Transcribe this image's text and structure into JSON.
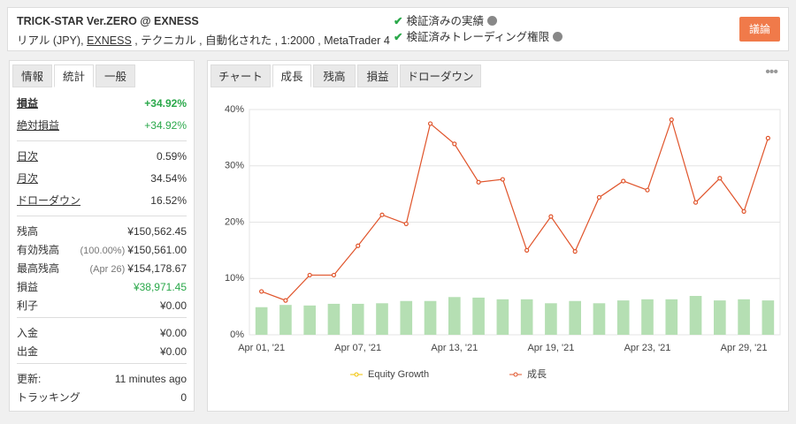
{
  "header": {
    "title": "TRICK-STAR Ver.ZERO @ EXNESS",
    "account": "リアル (JPY),",
    "broker": "EXNESS",
    "details": ", テクニカル , 自動化された , 1:2000 , MetaTrader 4",
    "badges": [
      "検証済みの実績",
      "検証済みトレーディング権限"
    ],
    "button": "議論"
  },
  "left_tabs": {
    "items": [
      "情報",
      "統計",
      "一般"
    ],
    "active": 1
  },
  "stats": [
    [
      {
        "label": "損益",
        "value": "+34.92%",
        "green": true,
        "bold": true
      },
      {
        "label": "絶対損益",
        "value": "+34.92%",
        "green": true
      }
    ],
    [
      {
        "label": "日次",
        "value": "0.59%"
      },
      {
        "label": "月次",
        "value": "34.54%"
      },
      {
        "label": "ドローダウン",
        "value": "16.52%"
      }
    ],
    [
      {
        "label": "残高",
        "value": "¥150,562.45"
      },
      {
        "label": "有効残高",
        "note": "(100.00%)",
        "value": "¥150,561.00"
      },
      {
        "label": "最高残高",
        "note": "(Apr 26)",
        "value": "¥154,178.67"
      },
      {
        "label": "損益",
        "value": "¥38,971.45",
        "green": true
      },
      {
        "label": "利子",
        "value": "¥0.00"
      }
    ],
    [
      {
        "label": "入金",
        "value": "¥0.00"
      },
      {
        "label": "出金",
        "value": "¥0.00"
      }
    ],
    [
      {
        "label": "更新:",
        "value": "11 minutes ago"
      },
      {
        "label": "トラッキング",
        "value": "0"
      }
    ]
  ],
  "right_tabs": {
    "items": [
      "チャート",
      "成長",
      "残高",
      "損益",
      "ドローダウン"
    ],
    "active": 1
  },
  "chart_data": {
    "type": "line",
    "categories": [
      "Apr 01, '21",
      null,
      null,
      null,
      "Apr 07, '21",
      null,
      null,
      null,
      "Apr 13, '21",
      null,
      null,
      null,
      "Apr 19, '21",
      null,
      null,
      null,
      "Apr 23, '21",
      null,
      null,
      null,
      "Apr 29, '21",
      null
    ],
    "series": [
      {
        "name": "Equity Growth",
        "color": "#f2c200",
        "values": [
          null,
          null,
          null,
          null,
          null,
          null,
          null,
          null,
          null,
          null,
          null,
          null,
          null,
          null,
          null,
          null,
          null,
          null,
          null,
          null,
          null,
          null
        ]
      },
      {
        "name": "成長",
        "color": "#e0542b",
        "values": [
          7.7,
          6.1,
          10.6,
          10.6,
          15.8,
          21.3,
          19.7,
          37.5,
          33.9,
          27.1,
          27.6,
          15.0,
          21.0,
          14.8,
          24.4,
          27.3,
          25.7,
          38.2,
          23.5,
          27.8,
          21.9,
          34.92
        ]
      }
    ],
    "bars": {
      "color": "#b5dfb3",
      "values": [
        4.9,
        5.3,
        5.2,
        5.5,
        5.5,
        5.6,
        6.0,
        6.0,
        6.7,
        6.6,
        6.3,
        6.3,
        5.6,
        6.0,
        5.6,
        6.1,
        6.3,
        6.3,
        6.9,
        6.1,
        6.3,
        6.1
      ]
    },
    "ylim": [
      0,
      40
    ],
    "yticks": [
      {
        "value": 0,
        "label": "0%"
      },
      {
        "value": 10,
        "label": "10%"
      },
      {
        "value": 20,
        "label": "20%"
      },
      {
        "value": 30,
        "label": "30%"
      },
      {
        "value": 40,
        "label": "40%"
      }
    ],
    "grid": true
  }
}
